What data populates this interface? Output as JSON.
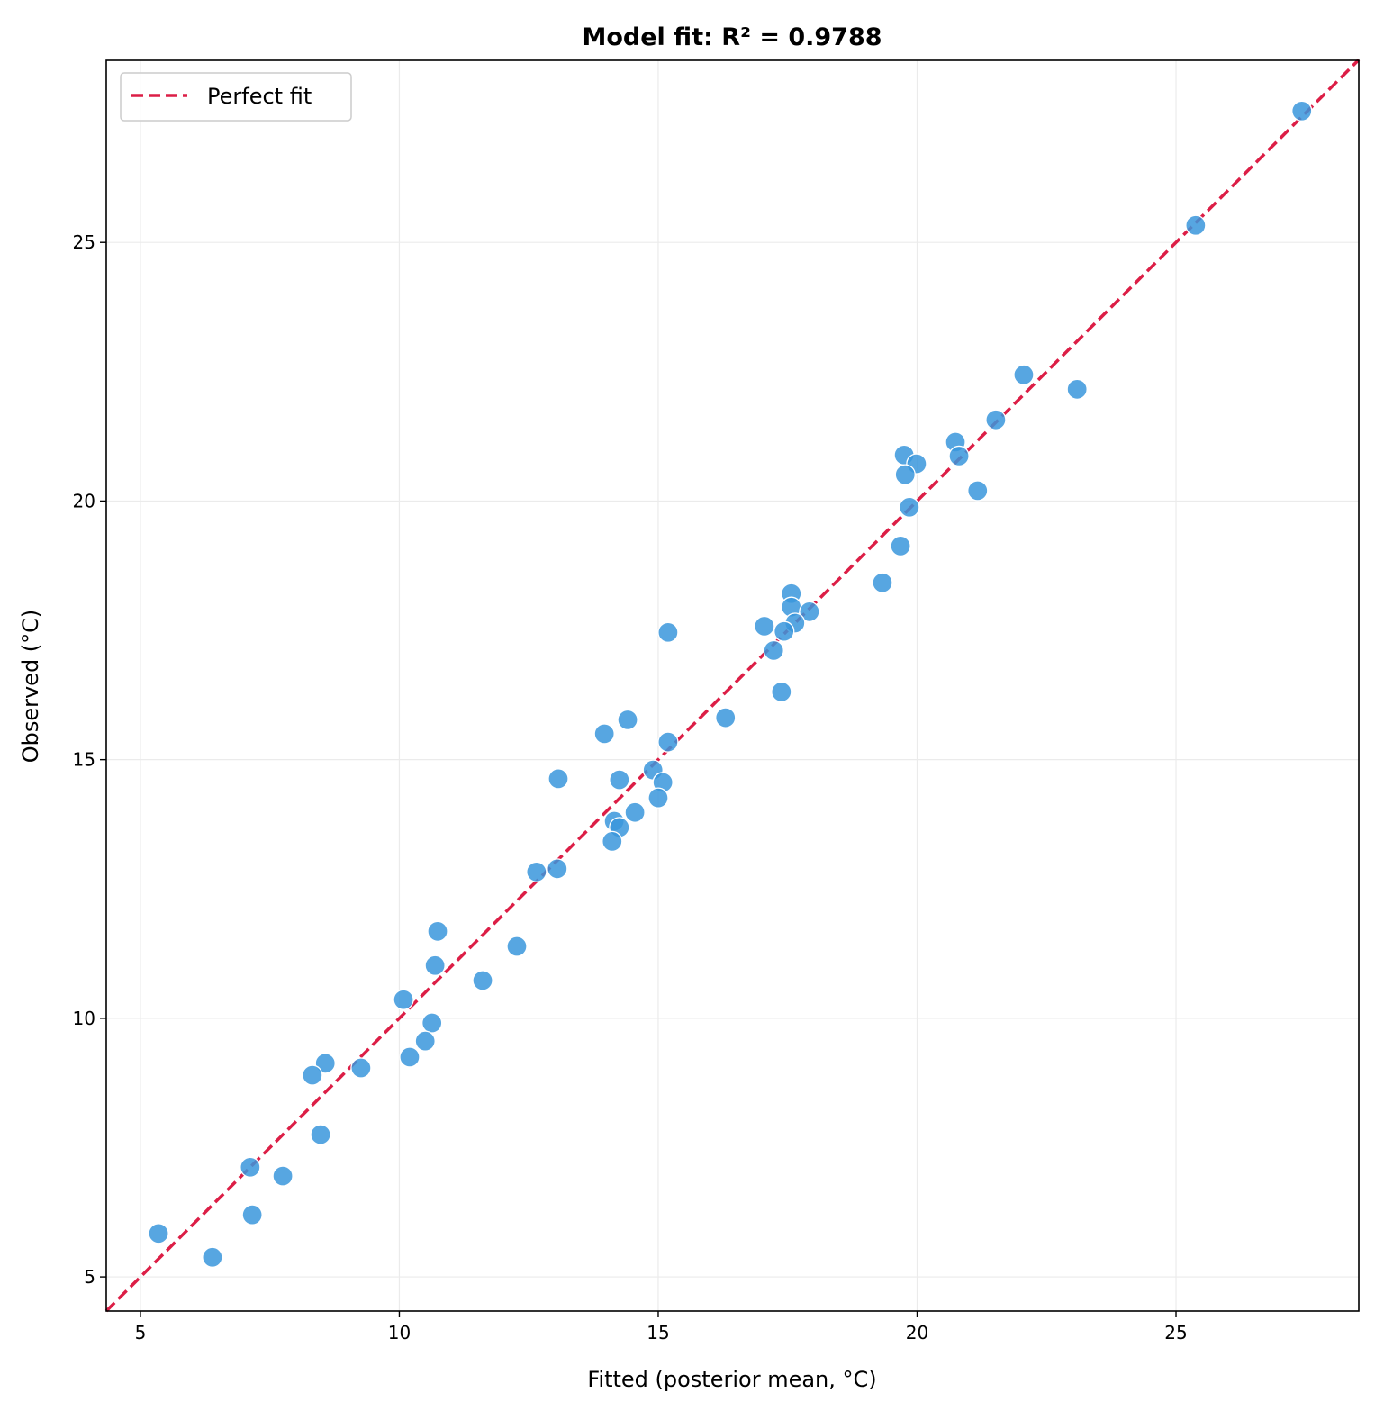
{
  "chart_data": {
    "type": "scatter",
    "title": "Model fit: R² = 0.9788",
    "xlabel": "Fitted (posterior mean, °C)",
    "ylabel": "Observed (°C)",
    "xlim": [
      4.34,
      28.53
    ],
    "ylim": [
      4.34,
      28.52
    ],
    "xticks": [
      5,
      10,
      15,
      20,
      25
    ],
    "yticks": [
      5,
      10,
      15,
      20,
      25
    ],
    "grid": true,
    "legend": {
      "placement": "top-left",
      "entries": [
        "Perfect fit"
      ]
    },
    "reference_line": {
      "name": "Perfect fit",
      "style": "dashed",
      "color": "#dc1e46",
      "slope": 1,
      "intercept": 0
    },
    "point_color": "#3a96dc",
    "points": [
      [
        27.43,
        27.54
      ],
      [
        25.38,
        25.33
      ],
      [
        22.06,
        22.44
      ],
      [
        23.09,
        22.16
      ],
      [
        21.52,
        21.57
      ],
      [
        20.74,
        21.14
      ],
      [
        20.81,
        20.87
      ],
      [
        19.75,
        20.89
      ],
      [
        19.99,
        20.72
      ],
      [
        19.77,
        20.51
      ],
      [
        21.17,
        20.2
      ],
      [
        19.85,
        19.88
      ],
      [
        19.68,
        19.13
      ],
      [
        19.33,
        18.42
      ],
      [
        17.57,
        18.21
      ],
      [
        17.57,
        17.95
      ],
      [
        17.92,
        17.86
      ],
      [
        17.64,
        17.64
      ],
      [
        17.05,
        17.58
      ],
      [
        17.43,
        17.48
      ],
      [
        15.19,
        17.46
      ],
      [
        17.23,
        17.11
      ],
      [
        17.38,
        16.31
      ],
      [
        16.3,
        15.81
      ],
      [
        14.41,
        15.77
      ],
      [
        13.96,
        15.5
      ],
      [
        15.19,
        15.34
      ],
      [
        14.9,
        14.8
      ],
      [
        15.09,
        14.56
      ],
      [
        13.07,
        14.63
      ],
      [
        14.25,
        14.61
      ],
      [
        15.0,
        14.26
      ],
      [
        14.55,
        13.98
      ],
      [
        14.15,
        13.81
      ],
      [
        14.25,
        13.69
      ],
      [
        14.11,
        13.42
      ],
      [
        12.65,
        12.83
      ],
      [
        13.05,
        12.89
      ],
      [
        12.27,
        11.39
      ],
      [
        10.74,
        11.68
      ],
      [
        10.69,
        11.02
      ],
      [
        11.61,
        10.73
      ],
      [
        10.08,
        10.36
      ],
      [
        10.63,
        9.91
      ],
      [
        10.5,
        9.56
      ],
      [
        10.2,
        9.25
      ],
      [
        8.57,
        9.13
      ],
      [
        8.32,
        8.9
      ],
      [
        9.26,
        9.04
      ],
      [
        8.48,
        7.75
      ],
      [
        7.12,
        7.12
      ],
      [
        7.75,
        6.95
      ],
      [
        7.16,
        6.2
      ],
      [
        5.35,
        5.84
      ],
      [
        6.39,
        5.38
      ]
    ]
  }
}
